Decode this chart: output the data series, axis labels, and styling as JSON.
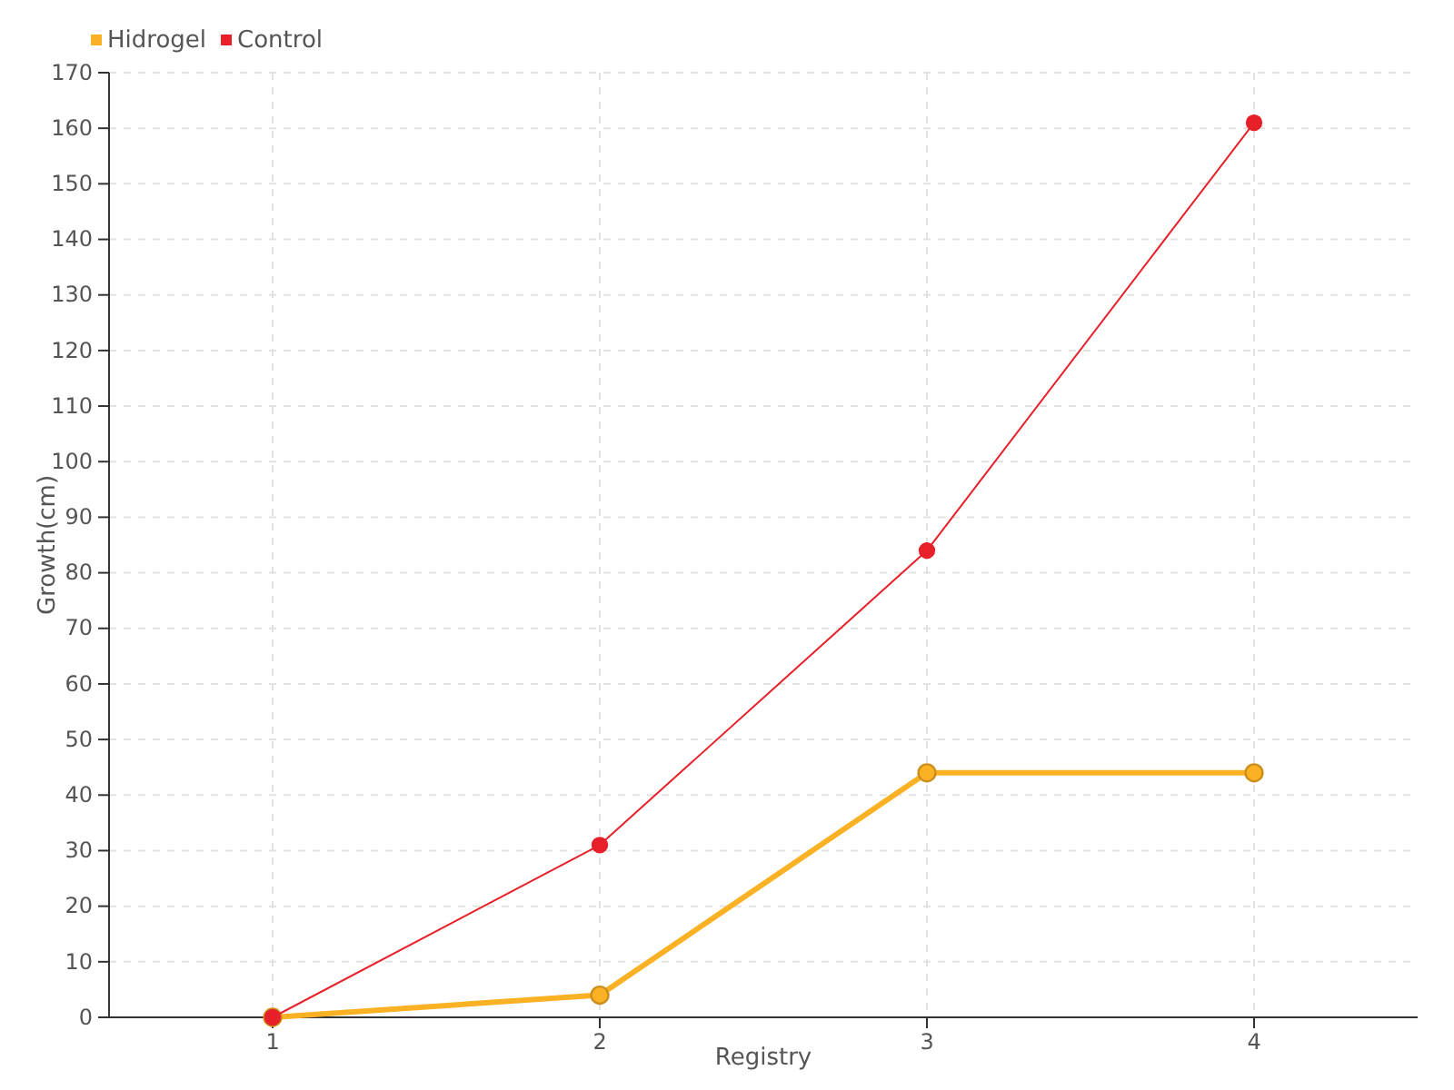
{
  "chart_data": {
    "type": "line",
    "xlabel": "Registry",
    "ylabel": "Growth(cm)",
    "x": [
      1,
      2,
      3,
      4
    ],
    "series": [
      {
        "name": "Hidrogel",
        "color": "#fbb124",
        "values": [
          0,
          4,
          44,
          44
        ]
      },
      {
        "name": "Control",
        "color": "#e8202a",
        "values": [
          0,
          31,
          84,
          161
        ]
      }
    ],
    "xlim": [
      0.5,
      4.5
    ],
    "xticks": [
      1,
      2,
      3,
      4
    ],
    "ylim": [
      0,
      170
    ],
    "yticks": [
      0,
      10,
      20,
      30,
      40,
      50,
      60,
      70,
      80,
      90,
      100,
      110,
      120,
      130,
      140,
      150,
      160,
      170
    ],
    "grid": true,
    "legend": "top left",
    "marker": "circle"
  }
}
